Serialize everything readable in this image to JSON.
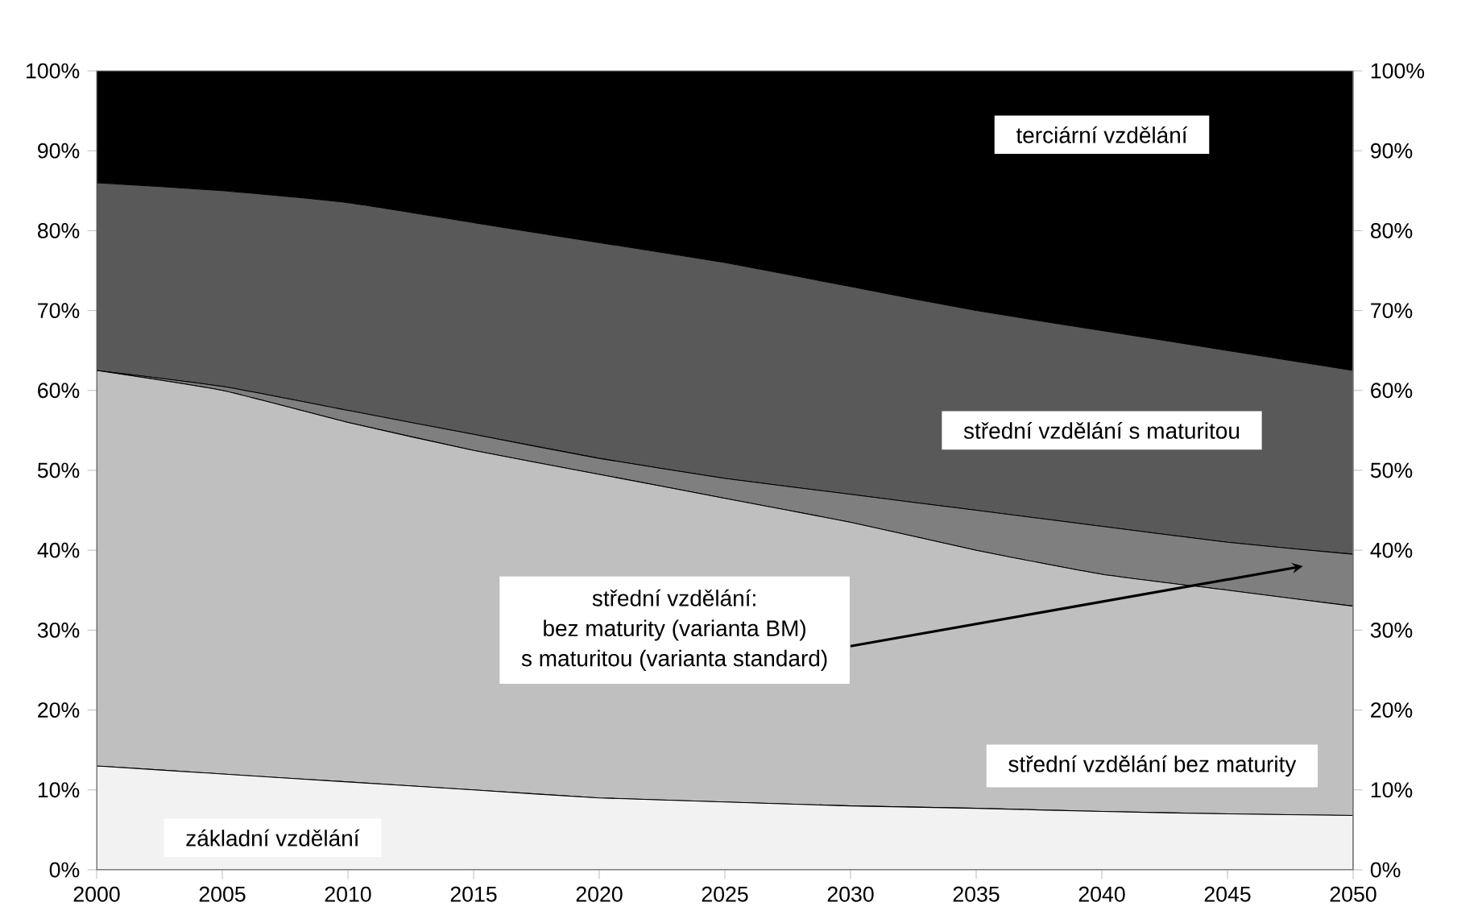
{
  "chart_data": {
    "type": "area",
    "stacked": true,
    "grid": false,
    "x": [
      2000,
      2005,
      2010,
      2015,
      2020,
      2025,
      2030,
      2035,
      2040,
      2045,
      2050
    ],
    "xlim": [
      2000,
      2050
    ],
    "xticks": [
      2000,
      2005,
      2010,
      2015,
      2020,
      2025,
      2030,
      2035,
      2040,
      2045,
      2050
    ],
    "ylim": [
      0,
      100
    ],
    "yticks": [
      {
        "value": 0,
        "label": "0%"
      },
      {
        "value": 10,
        "label": "10%"
      },
      {
        "value": 20,
        "label": "20%"
      },
      {
        "value": 30,
        "label": "30%"
      },
      {
        "value": 40,
        "label": "40%"
      },
      {
        "value": 50,
        "label": "50%"
      },
      {
        "value": 60,
        "label": "60%"
      },
      {
        "value": 70,
        "label": "70%"
      },
      {
        "value": 80,
        "label": "80%"
      },
      {
        "value": 90,
        "label": "90%"
      },
      {
        "value": 100,
        "label": "100%"
      }
    ],
    "y2lim": [
      0,
      100
    ],
    "y2ticks": [
      {
        "value": 0,
        "label": "0%"
      },
      {
        "value": 10,
        "label": "10%"
      },
      {
        "value": 20,
        "label": "20%"
      },
      {
        "value": 30,
        "label": "30%"
      },
      {
        "value": 40,
        "label": "40%"
      },
      {
        "value": 50,
        "label": "50%"
      },
      {
        "value": 60,
        "label": "60%"
      },
      {
        "value": 70,
        "label": "70%"
      },
      {
        "value": 80,
        "label": "80%"
      },
      {
        "value": 90,
        "label": "90%"
      },
      {
        "value": 100,
        "label": "100%"
      }
    ],
    "series": [
      {
        "name": "základní vzdělání",
        "color": "#f2f2f2",
        "values": [
          13,
          12,
          11,
          10,
          9,
          8.5,
          8,
          7.7,
          7.3,
          7,
          6.8
        ]
      },
      {
        "name": "střední vzdělání bez maturity",
        "color": "#bfbfbf",
        "values": [
          49.5,
          48,
          45,
          42.5,
          40.5,
          38,
          35.5,
          32.3,
          29.7,
          28,
          26.2
        ]
      },
      {
        "color": "#7f7f7f",
        "values": [
          0,
          0.5,
          1.5,
          2,
          2,
          2.5,
          3.5,
          5,
          6,
          6,
          6.5
        ]
      },
      {
        "name": "střední vzdělání s maturitou",
        "color": "#595959",
        "values": [
          23.5,
          24.5,
          26,
          26.5,
          27,
          27,
          26,
          25,
          24.5,
          24,
          23
        ]
      },
      {
        "name": "terciární vzdělání",
        "color": "#000000",
        "values": [
          14,
          15,
          16.5,
          19,
          21.5,
          24,
          27,
          30,
          32.5,
          35,
          37.5
        ]
      }
    ],
    "annotations": [
      "střední vzdělání:",
      "bez maturity (varianta BM)",
      "s maturitou (varianta standard)"
    ]
  }
}
